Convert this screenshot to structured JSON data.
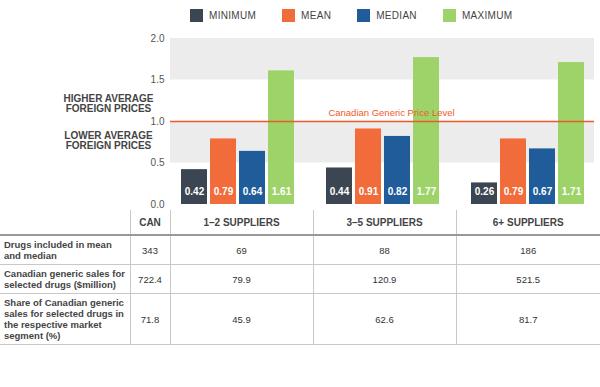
{
  "chart_data": {
    "type": "bar",
    "categories": [
      "1–2 SUPPLIERS",
      "3–5 SUPPLIERS",
      "6+ SUPPLIERS"
    ],
    "series": [
      {
        "name": "MINIMUM",
        "color": "#3b4652",
        "values": [
          0.42,
          0.44,
          0.26
        ]
      },
      {
        "name": "MEAN",
        "color": "#f26b3a",
        "values": [
          0.79,
          0.91,
          0.79
        ]
      },
      {
        "name": "MEDIAN",
        "color": "#1f5c99",
        "values": [
          0.64,
          0.82,
          0.67
        ]
      },
      {
        "name": "MAXIMUM",
        "color": "#9ed36a",
        "values": [
          1.61,
          1.77,
          1.71
        ]
      }
    ],
    "ylim": [
      0,
      2
    ],
    "yticks": [
      {
        "value": 0,
        "label": "0.0"
      },
      0.5,
      {
        "value": 1,
        "label": "1.0"
      },
      1.5,
      {
        "value": 2,
        "label": "2.0"
      }
    ],
    "grid": true,
    "legend": "top",
    "data_labels": true,
    "tick_labels": "y",
    "reference_line": {
      "value": 1,
      "label": "Canadian Generic Price Level",
      "color": "#f0592a"
    },
    "annotations": [
      "HIGHER AVERAGE FOREIGN PRICES",
      "LOWER AVERAGE FOREIGN PRICES"
    ]
  },
  "table": {
    "columns": [
      "CAN",
      "1–2 SUPPLIERS",
      "3–5 SUPPLIERS",
      "6+ SUPPLIERS"
    ],
    "rows": [
      {
        "label": "Drugs included in mean and median",
        "values": [
          343,
          69,
          88,
          186
        ]
      },
      {
        "label": "Canadian generic sales for selected drugs ($million)",
        "values": [
          722.4,
          79.9,
          120.9,
          521.5
        ]
      },
      {
        "label": "Share of Canadian generic sales for selected drugs in the respective market segment (%)",
        "values": [
          71.8,
          45.9,
          62.6,
          81.7
        ]
      }
    ]
  }
}
